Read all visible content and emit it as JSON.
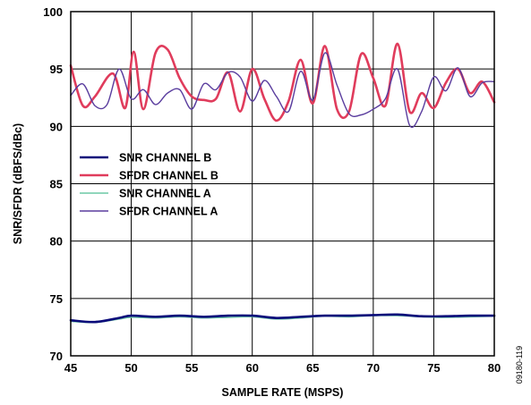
{
  "chart_data": {
    "type": "line",
    "xlabel": "SAMPLE RATE (MSPS)",
    "ylabel": "SNR/SFDR  (dBFS/dBc)",
    "xlim": [
      45,
      80
    ],
    "ylim": [
      70,
      100
    ],
    "x_ticks": [
      45,
      50,
      55,
      60,
      65,
      70,
      75,
      80
    ],
    "y_ticks": [
      70,
      75,
      80,
      85,
      90,
      95,
      100
    ],
    "grid": true,
    "legend_position": "center-left",
    "figure_id": "09180-119",
    "series": [
      {
        "name": "SNR CHANNEL B",
        "color": "#0a0a7a",
        "width": 2.6,
        "x": [
          45,
          47,
          49,
          50,
          52,
          54,
          56,
          58,
          60,
          62,
          64,
          66,
          68,
          70,
          72,
          74,
          76,
          78,
          80
        ],
        "y": [
          73.1,
          72.95,
          73.3,
          73.5,
          73.4,
          73.5,
          73.4,
          73.5,
          73.5,
          73.3,
          73.4,
          73.5,
          73.5,
          73.55,
          73.6,
          73.45,
          73.45,
          73.5,
          73.5
        ]
      },
      {
        "name": "SFDR CHANNEL B",
        "color": "#e03c5c",
        "width": 2.6,
        "x": [
          45,
          46,
          47,
          48.5,
          49.5,
          50.2,
          51,
          52,
          53,
          54,
          55,
          56,
          57,
          58,
          59,
          60,
          61,
          62,
          63,
          64,
          65,
          66,
          67,
          68,
          69,
          70,
          71,
          72,
          73,
          74,
          75,
          76,
          77,
          78,
          79,
          80
        ],
        "y": [
          95.3,
          91.8,
          92.6,
          94.6,
          91.6,
          96.5,
          91.5,
          96.4,
          96.7,
          94.2,
          92.6,
          92.3,
          92.4,
          94.7,
          91.3,
          95.0,
          92.4,
          90.5,
          92.2,
          95.8,
          92.0,
          97.0,
          91.5,
          91.3,
          96.3,
          94.2,
          91.8,
          97.2,
          91.3,
          92.9,
          91.6,
          93.8,
          95.0,
          92.9,
          93.9,
          92.1
        ]
      },
      {
        "name": "SNR CHANNEL A",
        "color": "#6cc8a6",
        "width": 1.4,
        "x": [
          45,
          47,
          49,
          50,
          52,
          54,
          56,
          58,
          60,
          62,
          64,
          66,
          68,
          70,
          72,
          74,
          76,
          78,
          80
        ],
        "y": [
          73.0,
          72.9,
          73.2,
          73.35,
          73.3,
          73.4,
          73.3,
          73.35,
          73.4,
          73.2,
          73.3,
          73.45,
          73.4,
          73.5,
          73.5,
          73.4,
          73.35,
          73.4,
          73.45
        ]
      },
      {
        "name": "SFDR CHANNEL A",
        "color": "#5a3d9e",
        "width": 1.4,
        "x": [
          45,
          46,
          47,
          48,
          49,
          50,
          51,
          52,
          53,
          54,
          55,
          56,
          57,
          58,
          59,
          60,
          61,
          62,
          63,
          64,
          65,
          66,
          67,
          68,
          69,
          70,
          71,
          72,
          73,
          74,
          75,
          76,
          77,
          78,
          79,
          80
        ],
        "y": [
          92.7,
          93.7,
          91.8,
          91.9,
          95.0,
          92.4,
          93.2,
          91.9,
          92.9,
          93.2,
          91.5,
          93.7,
          93.2,
          94.7,
          94.3,
          92.2,
          94.0,
          92.6,
          91.3,
          94.8,
          92.3,
          96.4,
          93.6,
          91.1,
          91.0,
          91.5,
          92.4,
          95.0,
          90.1,
          91.3,
          94.3,
          93.1,
          95.1,
          92.6,
          93.8,
          93.9
        ]
      }
    ]
  }
}
